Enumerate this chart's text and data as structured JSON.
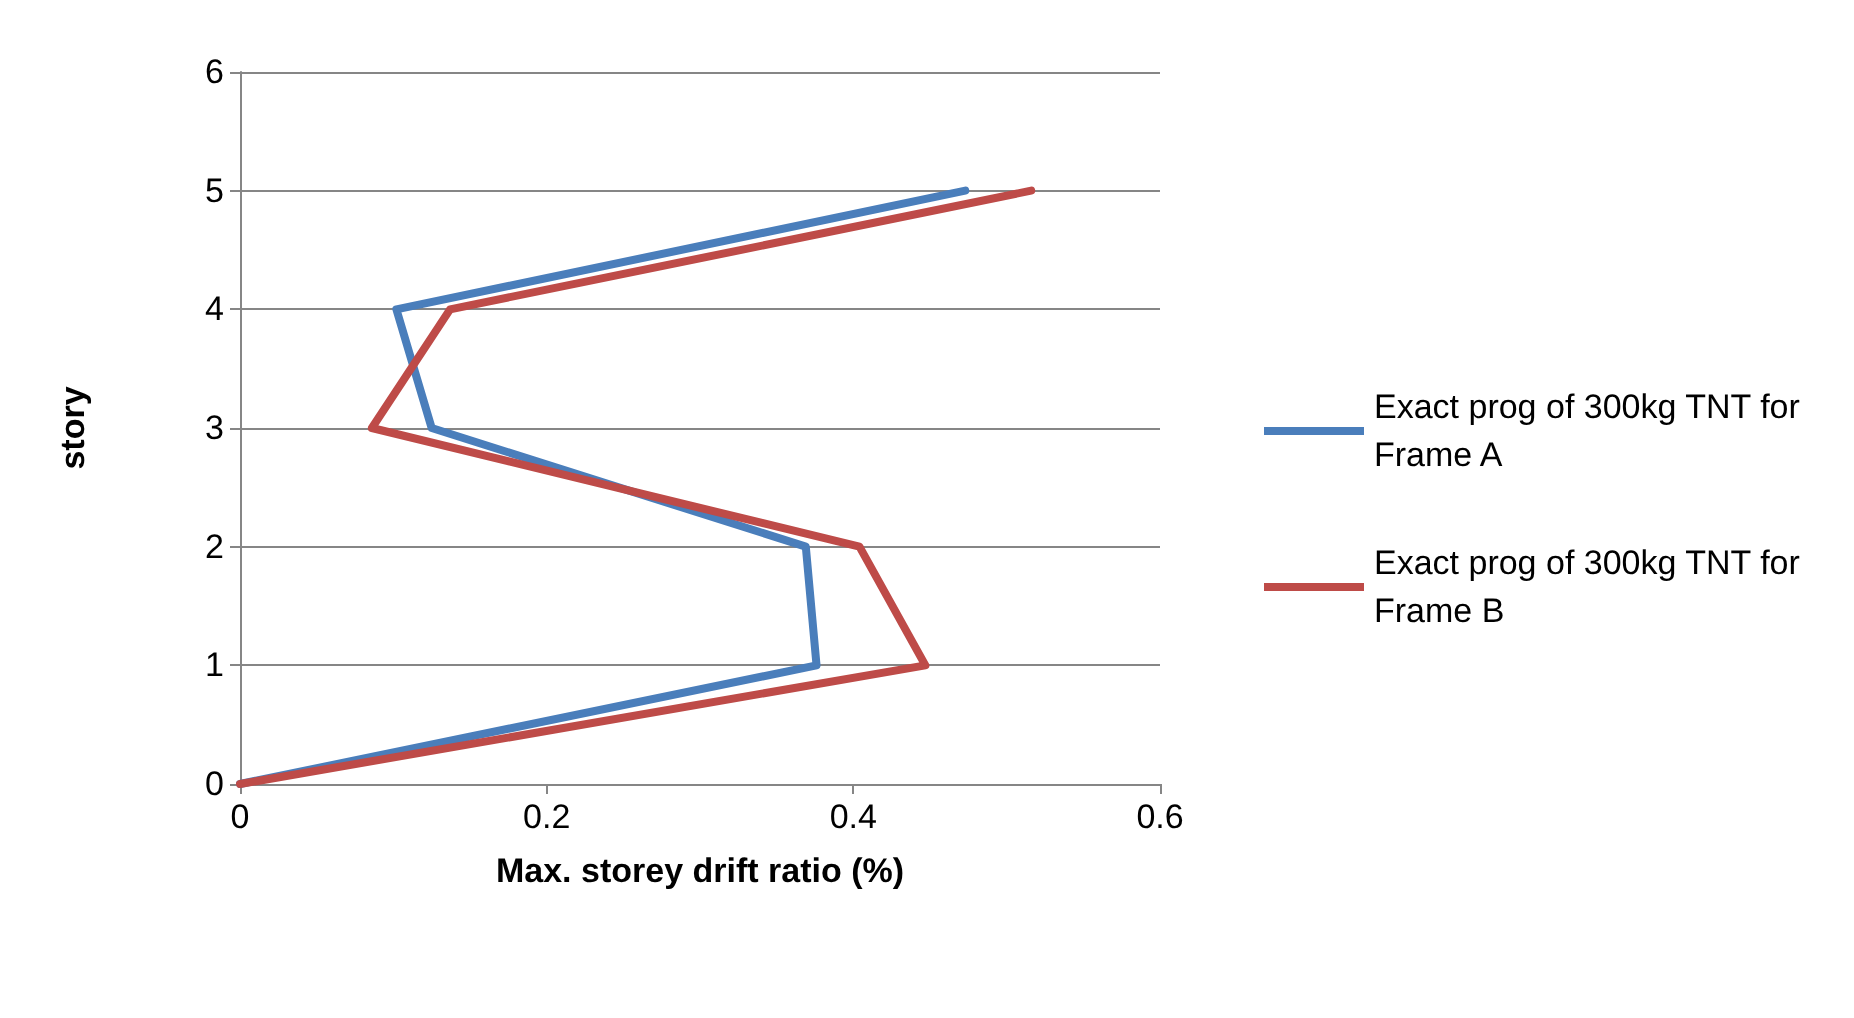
{
  "chart_data": {
    "type": "line",
    "xlabel": "Max. storey drift ratio (%)",
    "ylabel": "story",
    "xlim": [
      0,
      0.6
    ],
    "xticks": [
      0,
      0.2,
      0.4,
      0.6
    ],
    "ylim": [
      0,
      6
    ],
    "yticks": [
      0,
      1,
      2,
      3,
      4,
      5,
      6
    ],
    "grid": "y",
    "legend": "right",
    "marker": "none",
    "line_style": "solid",
    "series": [
      {
        "name": "Exact prog of 300kg TNT for Frame A",
        "color": "#4a7ebb",
        "x": [
          0,
          0.376,
          0.369,
          0.125,
          0.102,
          0.473
        ],
        "values": [
          0,
          1,
          2,
          3,
          4,
          5
        ]
      },
      {
        "name": "Exact prog of 300kg TNT for Frame B",
        "color": "#be4b48",
        "x": [
          0,
          0.447,
          0.404,
          0.086,
          0.137,
          0.516
        ],
        "values": [
          0,
          1,
          2,
          3,
          4,
          5
        ]
      }
    ]
  }
}
